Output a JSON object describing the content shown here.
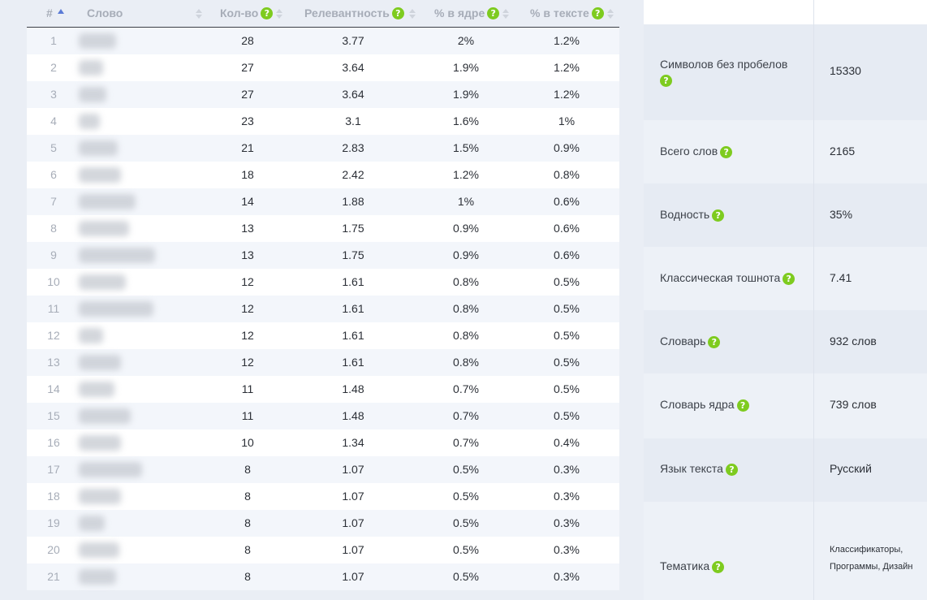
{
  "table": {
    "headers": {
      "num": "#",
      "word": "Слово",
      "count": "Кол-во",
      "relevance": "Релевантность",
      "core_pct": "% в ядре",
      "text_pct": "% в тексте"
    },
    "help_glyph": "?",
    "rows": [
      {
        "n": "1",
        "count": "28",
        "rel": "3.77",
        "core": "2%",
        "text": "1.2%"
      },
      {
        "n": "2",
        "count": "27",
        "rel": "3.64",
        "core": "1.9%",
        "text": "1.2%"
      },
      {
        "n": "3",
        "count": "27",
        "rel": "3.64",
        "core": "1.9%",
        "text": "1.2%"
      },
      {
        "n": "4",
        "count": "23",
        "rel": "3.1",
        "core": "1.6%",
        "text": "1%"
      },
      {
        "n": "5",
        "count": "21",
        "rel": "2.83",
        "core": "1.5%",
        "text": "0.9%"
      },
      {
        "n": "6",
        "count": "18",
        "rel": "2.42",
        "core": "1.2%",
        "text": "0.8%"
      },
      {
        "n": "7",
        "count": "14",
        "rel": "1.88",
        "core": "1%",
        "text": "0.6%"
      },
      {
        "n": "8",
        "count": "13",
        "rel": "1.75",
        "core": "0.9%",
        "text": "0.6%"
      },
      {
        "n": "9",
        "count": "13",
        "rel": "1.75",
        "core": "0.9%",
        "text": "0.6%"
      },
      {
        "n": "10",
        "count": "12",
        "rel": "1.61",
        "core": "0.8%",
        "text": "0.5%"
      },
      {
        "n": "11",
        "count": "12",
        "rel": "1.61",
        "core": "0.8%",
        "text": "0.5%"
      },
      {
        "n": "12",
        "count": "12",
        "rel": "1.61",
        "core": "0.8%",
        "text": "0.5%"
      },
      {
        "n": "13",
        "count": "12",
        "rel": "1.61",
        "core": "0.8%",
        "text": "0.5%"
      },
      {
        "n": "14",
        "count": "11",
        "rel": "1.48",
        "core": "0.7%",
        "text": "0.5%"
      },
      {
        "n": "15",
        "count": "11",
        "rel": "1.48",
        "core": "0.7%",
        "text": "0.5%"
      },
      {
        "n": "16",
        "count": "10",
        "rel": "1.34",
        "core": "0.7%",
        "text": "0.4%"
      },
      {
        "n": "17",
        "count": "8",
        "rel": "1.07",
        "core": "0.5%",
        "text": "0.3%"
      },
      {
        "n": "18",
        "count": "8",
        "rel": "1.07",
        "core": "0.5%",
        "text": "0.3%"
      },
      {
        "n": "19",
        "count": "8",
        "rel": "1.07",
        "core": "0.5%",
        "text": "0.3%"
      },
      {
        "n": "20",
        "count": "8",
        "rel": "1.07",
        "core": "0.5%",
        "text": "0.3%"
      },
      {
        "n": "21",
        "count": "8",
        "rel": "1.07",
        "core": "0.5%",
        "text": "0.3%"
      }
    ]
  },
  "stats": [
    {
      "label": "Символов без пробелов",
      "value": "15330"
    },
    {
      "label": "Всего слов",
      "value": "2165"
    },
    {
      "label": "Водность",
      "value": "35%"
    },
    {
      "label": "Классическая тошнота",
      "value": "7.41"
    },
    {
      "label": "Словарь",
      "value": "932 слов"
    },
    {
      "label": "Словарь ядра",
      "value": "739 слов"
    },
    {
      "label": "Язык текста",
      "value": "Русский"
    },
    {
      "label": "Тематика",
      "value": "Классификаторы, Программы, Дизайн"
    }
  ],
  "colors": {
    "help_badge": "#7ecb1f",
    "sort_active": "#5b7bd6",
    "header_text": "#a7adb8"
  }
}
